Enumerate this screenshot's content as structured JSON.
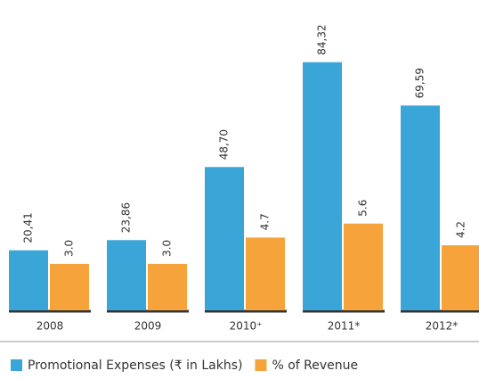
{
  "chart_data": {
    "type": "bar",
    "categories": [
      "2008",
      "2009",
      "2010⁺",
      "2011*",
      "2012*"
    ],
    "series": [
      {
        "name": "Promotional Expenses (₹ in Lakhs)",
        "color": "#3aa6d8",
        "values": [
          20.41,
          23.86,
          48.7,
          84.32,
          69.59
        ],
        "value_labels": [
          "20,41",
          "23,86",
          "48,70",
          "84,32",
          "69,59"
        ]
      },
      {
        "name": "% of Revenue",
        "color": "#f5a33a",
        "axis": "y2",
        "values": [
          3.0,
          3.0,
          4.7,
          5.6,
          4.2
        ],
        "value_labels": [
          "3.0",
          "3.0",
          "4.7",
          "5.6",
          "4.2"
        ]
      }
    ],
    "ylim": [
      0,
      100
    ],
    "y2lim": [
      0,
      19
    ]
  }
}
